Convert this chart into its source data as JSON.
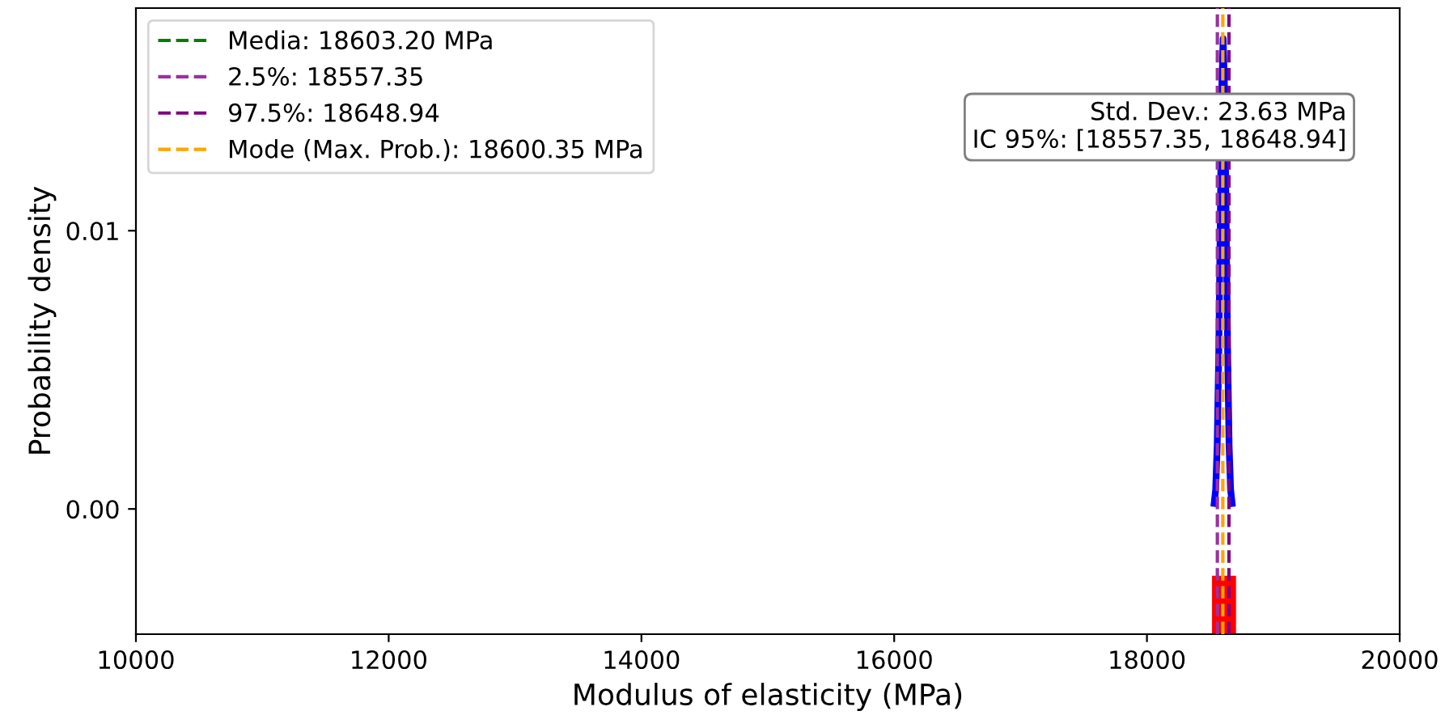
{
  "chart_data": {
    "type": "line",
    "xlabel": "Modulus of elasticity (MPa)",
    "ylabel": "Probability density",
    "series": [
      {
        "color": "#0000ff",
        "x": [
          18532,
          18544,
          18556,
          18568,
          18580,
          18591,
          18603,
          18615,
          18627,
          18639,
          18650,
          18662,
          18674
        ],
        "values": [
          0.0002,
          0.0007,
          0.0023,
          0.0055,
          0.0102,
          0.0149,
          0.0169,
          0.0149,
          0.0102,
          0.0055,
          0.0023,
          0.0007,
          0.0002
        ]
      },
      {
        "type": "histogram",
        "color": "#ff0000",
        "bins": [
          18515,
          18705
        ],
        "values": [
          0.0021
        ],
        "base": [
          -0.0045
        ]
      },
      {
        "name": "Media: 18603.20 MPa",
        "color": "#008000",
        "line_style": "dashed",
        "x": [
          null,
          null
        ],
        "values": [
          null,
          null
        ]
      },
      {
        "name": "2.5%: 18557.35",
        "color": "#9b30a0",
        "line_style": "dashed",
        "x": [
          18557.35,
          18557.35
        ],
        "values": [
          -0.0045,
          0.018
        ]
      },
      {
        "name": "97.5%: 18648.94",
        "color": "#800080",
        "line_style": "dashed",
        "x": [
          18648.94,
          18648.94
        ],
        "values": [
          -0.0045,
          0.018
        ]
      },
      {
        "name": "Mode (Max. Prob.): 18600.35 MPa",
        "color": "#ffa500",
        "line_style": "dashed",
        "x": [
          18600.35,
          18600.35
        ],
        "values": [
          -0.0045,
          0.018
        ]
      }
    ],
    "annotations": [
      "Std. Dev.: 23.63 MPa\nIC 95%: [18557.35, 18648.94]"
    ],
    "xlim": [
      10000,
      20000
    ],
    "xticks": [
      10000,
      12000,
      14000,
      16000,
      18000,
      20000
    ],
    "ylim": [
      -0.0045,
      0.018
    ],
    "yticks": [
      {
        "value": 0,
        "label": "0.00"
      },
      {
        "value": 0.01,
        "label": "0.01"
      }
    ],
    "legend": "top left"
  }
}
